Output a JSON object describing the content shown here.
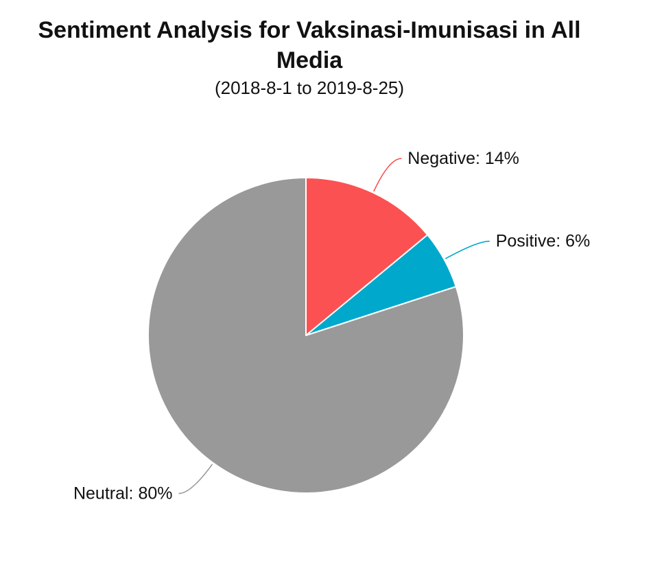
{
  "header": {
    "title": "Sentiment Analysis for Vaksinasi-Imunisasi in All Media",
    "subtitle": "(2018-8-1 to 2019-8-25)"
  },
  "chart_data": {
    "type": "pie",
    "title": "Sentiment Analysis for Vaksinasi-Imunisasi in All Media",
    "subtitle": "(2018-8-1 to 2019-8-25)",
    "slices": [
      {
        "label": "Negative",
        "value": 14,
        "color": "#FC5152"
      },
      {
        "label": "Positive",
        "value": 6,
        "color": "#00A9CB"
      },
      {
        "label": "Neutral",
        "value": 80,
        "color": "#999999"
      }
    ],
    "unit": "%",
    "label_format": "{label}: {value}%",
    "start_angle_deg": 0,
    "direction": "clockwise",
    "labels_outside": true,
    "leader_lines": true,
    "legend": "none",
    "slice_border_color": "#FFFFFF",
    "background": "#FFFFFF",
    "text_color": "#111111"
  }
}
